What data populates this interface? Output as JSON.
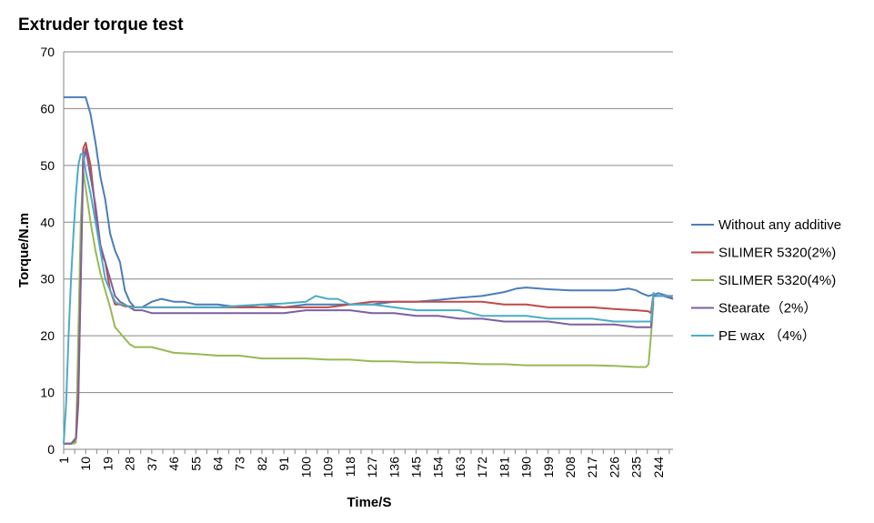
{
  "chart_data": {
    "type": "line",
    "title": "Extruder torque test",
    "xlabel": "Time/S",
    "ylabel": "Torque/N.m",
    "ylim": [
      0,
      70
    ],
    "y_ticks": [
      0,
      10,
      20,
      30,
      40,
      50,
      60,
      70
    ],
    "x_range": [
      1,
      250
    ],
    "x_ticks": [
      1,
      10,
      19,
      28,
      37,
      46,
      55,
      64,
      73,
      82,
      91,
      100,
      109,
      118,
      127,
      136,
      145,
      154,
      163,
      172,
      181,
      190,
      199,
      208,
      217,
      226,
      235,
      244
    ],
    "grid": "horizontal",
    "legend_position": "right",
    "series": [
      {
        "name": "Without any additive",
        "color": "#4a7ebb",
        "x": [
          1,
          4,
          7,
          9,
          10,
          12,
          14,
          16,
          18,
          20,
          22,
          24,
          26,
          28,
          30,
          33,
          37,
          41,
          46,
          50,
          55,
          60,
          64,
          73,
          82,
          91,
          100,
          109,
          118,
          127,
          136,
          145,
          154,
          163,
          172,
          181,
          186,
          190,
          199,
          208,
          217,
          226,
          232,
          235,
          237,
          240,
          244,
          248,
          250
        ],
        "values": [
          62,
          62,
          62,
          62,
          62,
          59,
          54,
          48,
          44,
          38,
          35,
          33,
          28,
          26,
          25,
          25,
          26,
          26.5,
          26,
          26,
          25.5,
          25.5,
          25.5,
          25,
          25.5,
          25,
          25.5,
          25.5,
          25.5,
          25.5,
          26,
          26,
          26.3,
          26.7,
          27,
          27.7,
          28.3,
          28.5,
          28.2,
          28,
          28,
          28,
          28.3,
          28,
          27.5,
          27,
          27.5,
          27,
          26.5
        ]
      },
      {
        "name": "SILIMER 5320(2%)",
        "color": "#be4b48",
        "x": [
          1,
          4,
          6,
          7,
          8,
          9,
          10,
          12,
          14,
          16,
          18,
          20,
          22,
          24,
          26,
          28,
          30,
          33,
          37,
          46,
          55,
          64,
          73,
          82,
          91,
          100,
          109,
          118,
          127,
          136,
          145,
          154,
          163,
          172,
          181,
          190,
          199,
          208,
          217,
          226,
          235,
          240,
          241,
          242,
          244,
          246,
          250
        ],
        "values": [
          1,
          1,
          1.5,
          8,
          30,
          53,
          54,
          50,
          42,
          35,
          33,
          28,
          25.5,
          25.5,
          25.2,
          25.2,
          25,
          25,
          25,
          25,
          25,
          25,
          25,
          25,
          25,
          25,
          25,
          25.5,
          26,
          26,
          26,
          26,
          26,
          26,
          25.5,
          25.5,
          25,
          25,
          25,
          24.7,
          24.5,
          24.3,
          24,
          27.5,
          27,
          27,
          27
        ]
      },
      {
        "name": "SILIMER 5320(4%)",
        "color": "#98b954",
        "x": [
          1,
          4,
          5,
          6,
          7,
          8,
          9,
          10,
          12,
          14,
          16,
          18,
          20,
          22,
          24,
          26,
          28,
          30,
          33,
          37,
          46,
          55,
          64,
          73,
          82,
          91,
          100,
          109,
          118,
          127,
          136,
          145,
          154,
          163,
          172,
          181,
          190,
          199,
          208,
          217,
          226,
          235,
          238,
          239,
          240,
          241,
          242
        ],
        "values": [
          1,
          1,
          1,
          1.2,
          20,
          40,
          49,
          46,
          40,
          35,
          31,
          28,
          25,
          21.5,
          20.5,
          19.5,
          18.5,
          18,
          18,
          18,
          17,
          16.8,
          16.5,
          16.5,
          16,
          16,
          16,
          15.8,
          15.8,
          15.5,
          15.5,
          15.3,
          15.3,
          15.2,
          15,
          15,
          14.8,
          14.8,
          14.8,
          14.8,
          14.7,
          14.5,
          14.5,
          14.5,
          15,
          20,
          26
        ]
      },
      {
        "name": "Stearate（2%）",
        "color": "#7d60a0",
        "x": [
          1,
          4,
          6,
          7,
          8,
          9,
          10,
          12,
          14,
          16,
          18,
          20,
          22,
          24,
          26,
          28,
          30,
          33,
          37,
          46,
          55,
          64,
          73,
          82,
          91,
          100,
          109,
          118,
          127,
          136,
          145,
          154,
          163,
          172,
          181,
          190,
          199,
          208,
          217,
          226,
          235,
          240,
          241,
          242,
          244,
          246,
          250
        ],
        "values": [
          1,
          1,
          2,
          10,
          30,
          50,
          53,
          48,
          43,
          36,
          33,
          30,
          27,
          26,
          25.5,
          25,
          24.5,
          24.5,
          24,
          24,
          24,
          24,
          24,
          24,
          24,
          24.5,
          24.5,
          24.5,
          24,
          24,
          23.5,
          23.5,
          23,
          23,
          22.5,
          22.5,
          22.5,
          22,
          22,
          22,
          21.5,
          21.5,
          21.5,
          27,
          27,
          27,
          26.5
        ]
      },
      {
        "name": "PE wax （4%）",
        "color": "#4bacc6",
        "x": [
          1,
          2,
          3,
          4,
          5,
          6,
          7,
          8,
          9,
          10,
          12,
          14,
          16,
          18,
          20,
          22,
          24,
          26,
          28,
          30,
          33,
          37,
          46,
          55,
          64,
          73,
          82,
          91,
          100,
          104,
          109,
          113,
          118,
          127,
          136,
          145,
          154,
          163,
          172,
          181,
          190,
          199,
          208,
          217,
          226,
          235,
          240,
          241,
          242,
          244,
          246,
          250
        ],
        "values": [
          1,
          8,
          20,
          30,
          38,
          45,
          50,
          52,
          52,
          49,
          45,
          40,
          35,
          30,
          28,
          26,
          25.5,
          25.5,
          25,
          25,
          25,
          25,
          25,
          25,
          25,
          25.3,
          25.5,
          25.7,
          26,
          27,
          26.5,
          26.5,
          25.5,
          25.5,
          25,
          24.5,
          24.5,
          24.5,
          23.5,
          23.5,
          23.5,
          23,
          23,
          23,
          22.5,
          22.5,
          22.5,
          22.5,
          27.5,
          27,
          27,
          27
        ]
      }
    ]
  }
}
